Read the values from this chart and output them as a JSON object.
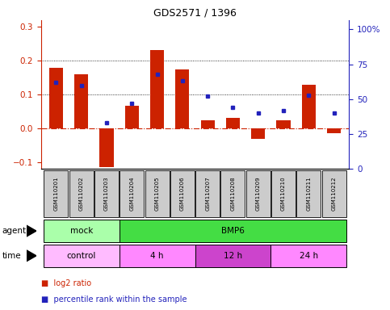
{
  "title": "GDS2571 / 1396",
  "samples": [
    "GSM110201",
    "GSM110202",
    "GSM110203",
    "GSM110204",
    "GSM110205",
    "GSM110206",
    "GSM110207",
    "GSM110208",
    "GSM110209",
    "GSM110210",
    "GSM110211",
    "GSM110212"
  ],
  "log2_ratio": [
    0.178,
    0.161,
    -0.115,
    0.068,
    0.232,
    0.175,
    0.025,
    0.03,
    -0.03,
    0.025,
    0.13,
    -0.015
  ],
  "percentile": [
    0.62,
    0.6,
    0.33,
    0.47,
    0.68,
    0.63,
    0.52,
    0.44,
    0.4,
    0.42,
    0.53,
    0.4
  ],
  "bar_color": "#cc2200",
  "dot_color": "#2222bb",
  "ylim_left": [
    -0.12,
    0.32
  ],
  "ylim_right": [
    0.0,
    1.0667
  ],
  "yticks_left": [
    -0.1,
    0.0,
    0.1,
    0.2,
    0.3
  ],
  "yticks_right": [
    0.0,
    0.25,
    0.5,
    0.75,
    1.0
  ],
  "yticklabels_right": [
    "0",
    "25",
    "50",
    "75",
    "100%"
  ],
  "hlines": [
    0.1,
    0.2
  ],
  "zeroline_color": "#cc2200",
  "agent_groups": [
    {
      "label": "mock",
      "start": 0,
      "end": 3,
      "color": "#aaffaa"
    },
    {
      "label": "BMP6",
      "start": 3,
      "end": 12,
      "color": "#44dd44"
    }
  ],
  "time_groups": [
    {
      "label": "control",
      "start": 0,
      "end": 3,
      "color": "#ffbbff"
    },
    {
      "label": "4 h",
      "start": 3,
      "end": 6,
      "color": "#ff88ff"
    },
    {
      "label": "12 h",
      "start": 6,
      "end": 9,
      "color": "#cc44cc"
    },
    {
      "label": "24 h",
      "start": 9,
      "end": 12,
      "color": "#ff88ff"
    }
  ],
  "legend_red_label": "log2 ratio",
  "legend_blue_label": "percentile rank within the sample",
  "bar_width": 0.55,
  "label_bg": "#cccccc",
  "n": 12
}
